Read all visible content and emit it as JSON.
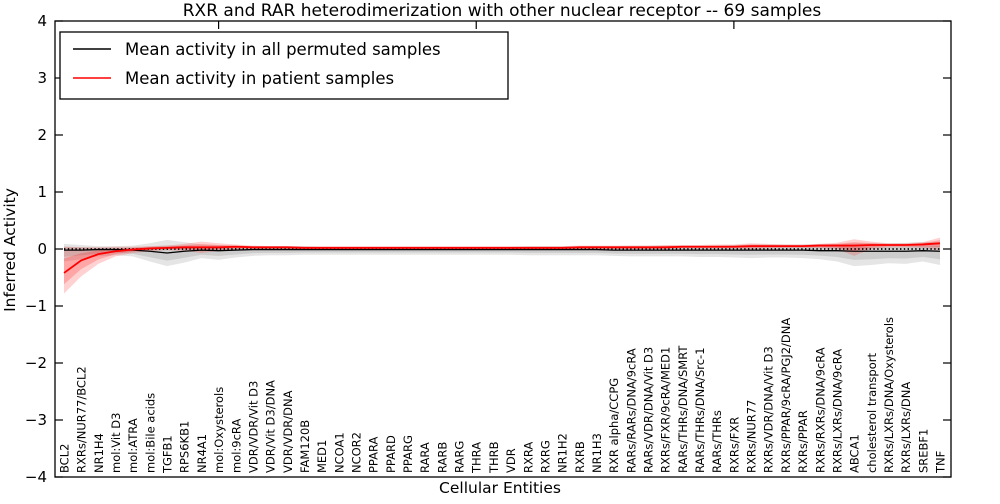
{
  "figure": {
    "background": "#ffffff",
    "title": "RXR and RAR heterodimerization with other nuclear receptor -- 69 samples",
    "xlabel": "Cellular Entities",
    "ylabel": "Inferred Activity"
  },
  "legend": {
    "entries": [
      {
        "label": "Mean activity in all permuted samples",
        "color": "#000000"
      },
      {
        "label": "Mean activity in patient samples",
        "color": "#ff0000"
      }
    ]
  },
  "chart_data": {
    "type": "line",
    "title": "RXR and RAR heterodimerization with other nuclear receptor -- 69 samples",
    "xlabel": "Cellular Entities",
    "ylabel": "Inferred Activity",
    "ylim": [
      -4,
      4
    ],
    "yticks": [
      4,
      3,
      2,
      1,
      0,
      -1,
      -2,
      -3,
      -4
    ],
    "grid": false,
    "legend_position": "upper left",
    "zero_reference_line": {
      "style": "dotted",
      "color": "#000000",
      "y": 0
    },
    "categories": [
      "BCL2",
      "RXRs/NUR77/BCL2",
      "NR1H4",
      "mol:Vit D3",
      "mol:ATRA",
      "mol:Bile acids",
      "TGFB1",
      "RPS6KB1",
      "NR4A1",
      "mol:Oxysterols",
      "mol:9cRA",
      "VDR/VDR/Vit D3",
      "VDR/Vit D3/DNA",
      "VDR/VDR/DNA",
      "FAM120B",
      "MED1",
      "NCOA1",
      "NCOR2",
      "PPARA",
      "PPARD",
      "PPARG",
      "RARA",
      "RARB",
      "RARG",
      "THRA",
      "THRB",
      "VDR",
      "RXRA",
      "RXRG",
      "NR1H2",
      "RXRB",
      "NR1H3",
      "RXR alpha/CCPG",
      "RARs/RARs/DNA/9cRA",
      "RARs/VDR/DNA/Vit D3",
      "RXRs/FXR/9cRA/MED1",
      "RARs/THRs/DNA/SMRT",
      "RARs/THRs/DNA/Src-1",
      "RARs/THRs",
      "RXRs/FXR",
      "RXRs/NUR77",
      "RXRs/VDR/DNA/Vit D3",
      "RXRs/PPAR/9cRA/PGJ2/DNA",
      "RXRs/PPAR",
      "RXRs/RXRs/DNA/9cRA",
      "RXRs/LXRs/DNA/9cRA",
      "ABCA1",
      "cholesterol transport",
      "RXRs/LXRs/DNA/Oxysterols",
      "RXRs/LXRs/DNA",
      "SREBF1",
      "TNF"
    ],
    "series": [
      {
        "name": "Mean activity in all permuted samples",
        "color": "#000000",
        "band_color": "#bdbdbd",
        "values": [
          -0.02,
          -0.02,
          -0.01,
          -0.01,
          -0.02,
          -0.04,
          -0.07,
          -0.04,
          -0.02,
          -0.03,
          -0.02,
          -0.01,
          -0.01,
          -0.01,
          -0.01,
          -0.01,
          -0.01,
          -0.01,
          -0.01,
          -0.01,
          -0.01,
          -0.01,
          -0.01,
          -0.01,
          -0.01,
          -0.01,
          -0.01,
          -0.01,
          -0.01,
          -0.01,
          -0.01,
          -0.01,
          -0.02,
          -0.02,
          -0.02,
          -0.02,
          -0.02,
          -0.02,
          -0.02,
          -0.02,
          -0.02,
          -0.02,
          -0.02,
          -0.02,
          -0.03,
          -0.03,
          -0.04,
          -0.04,
          -0.04,
          -0.04,
          -0.03,
          -0.04
        ],
        "band_hi": [
          0.09,
          0.07,
          0.05,
          0.05,
          0.06,
          0.1,
          0.16,
          0.12,
          0.08,
          0.07,
          0.06,
          0.05,
          0.05,
          0.05,
          0.05,
          0.04,
          0.04,
          0.04,
          0.04,
          0.04,
          0.04,
          0.04,
          0.04,
          0.04,
          0.04,
          0.04,
          0.04,
          0.05,
          0.05,
          0.05,
          0.05,
          0.05,
          0.05,
          0.06,
          0.06,
          0.06,
          0.06,
          0.06,
          0.06,
          0.07,
          0.08,
          0.08,
          0.08,
          0.08,
          0.09,
          0.09,
          0.1,
          0.1,
          0.1,
          0.11,
          0.12,
          0.12
        ],
        "band_lo": [
          -0.22,
          -0.18,
          -0.13,
          -0.11,
          -0.13,
          -0.22,
          -0.3,
          -0.24,
          -0.16,
          -0.19,
          -0.15,
          -0.12,
          -0.11,
          -0.11,
          -0.1,
          -0.1,
          -0.1,
          -0.1,
          -0.1,
          -0.1,
          -0.1,
          -0.1,
          -0.1,
          -0.1,
          -0.1,
          -0.1,
          -0.1,
          -0.11,
          -0.11,
          -0.11,
          -0.11,
          -0.11,
          -0.12,
          -0.13,
          -0.13,
          -0.13,
          -0.13,
          -0.14,
          -0.14,
          -0.15,
          -0.16,
          -0.15,
          -0.15,
          -0.16,
          -0.18,
          -0.22,
          -0.3,
          -0.28,
          -0.25,
          -0.26,
          -0.22,
          -0.28
        ]
      },
      {
        "name": "Mean activity in patient samples",
        "color": "#ff0000",
        "band_color": "#f4a0a0",
        "values": [
          -0.42,
          -0.2,
          -0.09,
          -0.04,
          -0.01,
          0.01,
          0.02,
          0.03,
          0.03,
          0.03,
          0.04,
          0.03,
          0.03,
          0.03,
          0.02,
          0.02,
          0.02,
          0.02,
          0.02,
          0.02,
          0.02,
          0.02,
          0.02,
          0.02,
          0.02,
          0.02,
          0.02,
          0.02,
          0.02,
          0.02,
          0.03,
          0.03,
          0.03,
          0.03,
          0.03,
          0.03,
          0.04,
          0.04,
          0.04,
          0.04,
          0.05,
          0.05,
          0.05,
          0.05,
          0.06,
          0.06,
          0.06,
          0.07,
          0.07,
          0.07,
          0.08,
          0.1
        ],
        "band_hi": [
          0.04,
          0.03,
          0.03,
          0.04,
          0.04,
          0.05,
          0.06,
          0.09,
          0.13,
          0.1,
          0.08,
          0.06,
          0.05,
          0.05,
          0.05,
          0.05,
          0.05,
          0.05,
          0.05,
          0.05,
          0.05,
          0.05,
          0.05,
          0.05,
          0.05,
          0.05,
          0.05,
          0.05,
          0.05,
          0.05,
          0.06,
          0.06,
          0.06,
          0.06,
          0.06,
          0.07,
          0.07,
          0.07,
          0.08,
          0.08,
          0.1,
          0.09,
          0.08,
          0.08,
          0.09,
          0.11,
          0.17,
          0.13,
          0.1,
          0.1,
          0.12,
          0.2
        ],
        "band_lo": [
          -0.78,
          -0.48,
          -0.26,
          -0.13,
          -0.07,
          -0.04,
          -0.02,
          -0.03,
          -0.07,
          -0.03,
          -0.01,
          0.0,
          0.0,
          0.0,
          0.0,
          0.0,
          0.0,
          0.0,
          0.0,
          0.0,
          0.0,
          0.0,
          0.0,
          0.0,
          0.0,
          0.0,
          0.0,
          -0.01,
          -0.01,
          -0.01,
          0.0,
          0.0,
          0.0,
          0.0,
          0.0,
          0.0,
          0.01,
          0.01,
          0.01,
          0.01,
          0.0,
          0.01,
          0.02,
          0.02,
          0.02,
          0.0,
          -0.12,
          0.0,
          0.03,
          0.03,
          0.02,
          -0.02
        ]
      }
    ]
  }
}
